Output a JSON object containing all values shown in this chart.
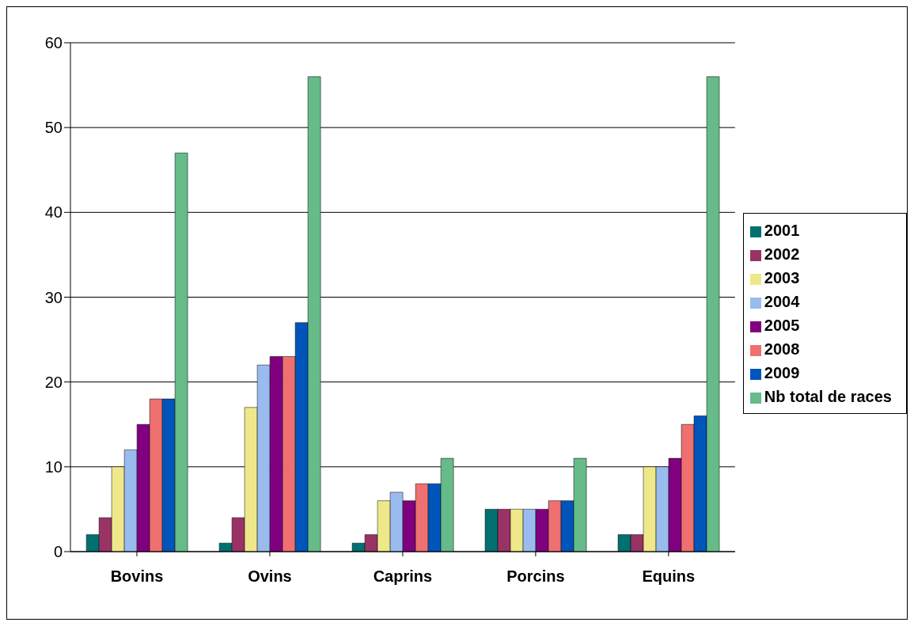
{
  "chart_data": {
    "type": "bar",
    "categories": [
      "Bovins",
      "Ovins",
      "Caprins",
      "Porcins",
      "Equins"
    ],
    "series": [
      {
        "name": "2001",
        "color": "#007070",
        "values": [
          2,
          1,
          1,
          5,
          2
        ]
      },
      {
        "name": "2002",
        "color": "#993366",
        "values": [
          4,
          4,
          2,
          5,
          2
        ]
      },
      {
        "name": "2003",
        "color": "#eee88a",
        "values": [
          10,
          17,
          6,
          5,
          10
        ]
      },
      {
        "name": "2004",
        "color": "#99bbee",
        "values": [
          12,
          22,
          7,
          5,
          10
        ]
      },
      {
        "name": "2005",
        "color": "#800080",
        "values": [
          15,
          23,
          6,
          5,
          11
        ]
      },
      {
        "name": "2008",
        "color": "#ee7070",
        "values": [
          18,
          23,
          8,
          6,
          15
        ]
      },
      {
        "name": "2009",
        "color": "#0055bb",
        "values": [
          18,
          27,
          8,
          6,
          16
        ]
      },
      {
        "name": "Nb total de races",
        "color": "#66bb88",
        "values": [
          47,
          56,
          11,
          11,
          56
        ]
      }
    ],
    "ylim": [
      0,
      60
    ],
    "yticks": [
      0,
      10,
      20,
      30,
      40,
      50,
      60
    ],
    "grid": "y",
    "legend": "right"
  }
}
